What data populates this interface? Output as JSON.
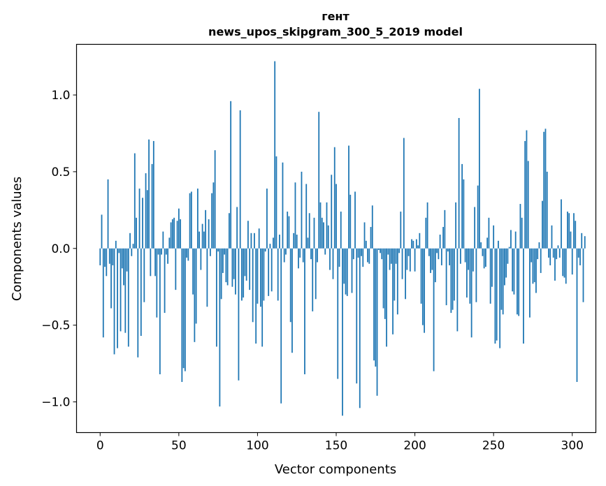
{
  "chart_data": {
    "type": "bar",
    "title_line1": "гент",
    "title_line2": "news_upos_skipgram_300_5_2019 model",
    "xlabel": "Vector components",
    "ylabel": "Components values",
    "xlim": [
      -15,
      315
    ],
    "ylim": [
      -1.2,
      1.33
    ],
    "x_ticks": [
      0,
      50,
      100,
      150,
      200,
      250,
      300
    ],
    "x_tick_labels": [
      "0",
      "50",
      "100",
      "150",
      "200",
      "250",
      "300"
    ],
    "y_ticks": [
      -1.0,
      -0.5,
      0.0,
      0.5,
      1.0
    ],
    "y_tick_labels": [
      "−1.0",
      "−0.5",
      "0.0",
      "0.5",
      "1.0"
    ],
    "bar_color": "#1f77b4",
    "values": [
      -0.11,
      0.22,
      -0.58,
      -0.12,
      -0.18,
      0.45,
      -0.1,
      -0.39,
      -0.11,
      -0.69,
      0.05,
      -0.65,
      -0.03,
      -0.54,
      -0.13,
      -0.24,
      -0.55,
      -0.15,
      -0.64,
      0.1,
      -0.05,
      0.03,
      0.62,
      0.2,
      -0.71,
      0.39,
      -0.57,
      0.33,
      -0.35,
      0.49,
      0.38,
      0.71,
      -0.18,
      0.55,
      0.7,
      -0.18,
      -0.45,
      -0.04,
      -0.82,
      -0.04,
      0.11,
      -0.42,
      -0.04,
      -0.1,
      0.07,
      0.17,
      0.19,
      0.2,
      -0.27,
      0.18,
      0.26,
      0.19,
      -0.87,
      -0.78,
      -0.8,
      -0.06,
      -0.08,
      0.36,
      0.37,
      -0.3,
      -0.61,
      -0.49,
      0.39,
      0.11,
      -0.14,
      0.16,
      0.11,
      0.25,
      -0.38,
      0.19,
      -0.05,
      0.36,
      0.43,
      0.64,
      -0.64,
      -0.02,
      -1.03,
      -0.33,
      -0.16,
      -0.04,
      -0.22,
      -0.24,
      0.23,
      0.96,
      -0.25,
      -0.2,
      -0.3,
      0.27,
      -0.86,
      0.9,
      -0.34,
      -0.32,
      -0.18,
      -0.21,
      0.18,
      -0.27,
      0.1,
      -0.48,
      0.1,
      -0.62,
      -0.36,
      0.13,
      -0.38,
      -0.64,
      -0.34,
      -0.02,
      0.39,
      -0.31,
      0.03,
      -0.28,
      0.07,
      1.22,
      0.6,
      -0.34,
      0.09,
      -1.01,
      0.56,
      -0.09,
      -0.04,
      0.24,
      0.21,
      -0.48,
      -0.68,
      0.1,
      0.43,
      0.09,
      -0.13,
      -0.06,
      0.5,
      -0.09,
      -0.82,
      0.42,
      0.07,
      0.23,
      -0.07,
      -0.41,
      0.2,
      -0.33,
      -0.09,
      0.89,
      0.3,
      0.2,
      0.17,
      -0.04,
      0.3,
      0.15,
      -0.14,
      0.48,
      -0.2,
      0.66,
      0.42,
      -0.85,
      -0.12,
      0.24,
      -1.09,
      -0.23,
      -0.3,
      -0.31,
      0.67,
      0.35,
      -0.29,
      -0.07,
      0.37,
      -0.88,
      -0.06,
      -1.04,
      -0.05,
      -0.12,
      0.17,
      0.05,
      -0.09,
      -0.1,
      0.14,
      0.28,
      -0.73,
      -0.77,
      -0.96,
      -0.01,
      -0.03,
      -0.07,
      -0.39,
      -0.46,
      -0.64,
      -0.04,
      -0.14,
      -0.1,
      -0.56,
      -0.34,
      -0.1,
      -0.43,
      -0.03,
      0.24,
      -0.2,
      0.72,
      -0.33,
      -0.14,
      -0.05,
      -0.15,
      0.06,
      0.05,
      -0.15,
      0.06,
      0.02,
      0.1,
      -0.36,
      -0.5,
      -0.55,
      0.2,
      0.3,
      -0.05,
      -0.16,
      -0.14,
      -0.8,
      -0.22,
      -0.03,
      -0.07,
      0.09,
      -0.11,
      0.14,
      0.25,
      -0.37,
      -0.02,
      -0.11,
      -0.42,
      -0.4,
      -0.34,
      0.3,
      -0.54,
      0.85,
      -0.1,
      0.55,
      0.45,
      -0.09,
      -0.32,
      -0.14,
      -0.36,
      -0.58,
      -0.15,
      0.27,
      -0.35,
      0.41,
      1.04,
      0.04,
      -0.05,
      -0.13,
      -0.12,
      0.07,
      0.2,
      -0.36,
      -0.25,
      0.15,
      -0.62,
      -0.6,
      0.05,
      -0.65,
      -0.4,
      -0.43,
      -0.24,
      -0.19,
      -0.1,
      0.01,
      0.12,
      -0.28,
      -0.3,
      0.11,
      -0.43,
      -0.44,
      0.29,
      0.2,
      -0.62,
      0.7,
      0.77,
      0.57,
      -0.45,
      -0.09,
      -0.23,
      -0.22,
      -0.29,
      -0.07,
      0.04,
      -0.16,
      0.31,
      0.76,
      0.78,
      0.5,
      -0.06,
      -0.11,
      0.15,
      -0.06,
      -0.21,
      -0.07,
      0.02,
      -0.06,
      0.32,
      -0.18,
      -0.19,
      -0.23,
      0.24,
      0.23,
      0.11,
      -0.17,
      0.23,
      0.18,
      -0.87,
      -0.06,
      -0.11,
      0.1,
      -0.35,
      0.08
    ]
  }
}
